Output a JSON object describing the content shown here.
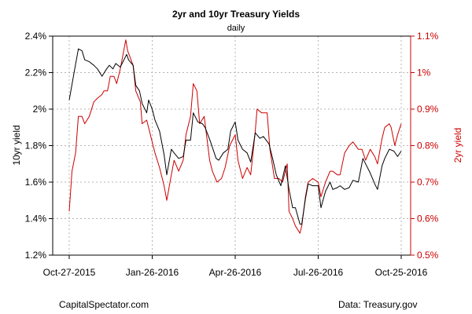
{
  "chart_data": {
    "type": "line",
    "title": "2yr and 10yr Treasury Yields",
    "subtitle": "daily",
    "xlabel": "",
    "x_ticks": [
      "Oct-27-2015",
      "Jan-26-2016",
      "Apr-26-2016",
      "Jul-26-2016",
      "Oct-25-2016"
    ],
    "left_axis": {
      "label": "10yr yield",
      "ylim": [
        1.2,
        2.4
      ],
      "tick_labels": [
        "1.2%",
        "1.4%",
        "1.6%",
        "1.8%",
        "2%",
        "2.2%",
        "2.4%"
      ],
      "color": "#000000"
    },
    "right_axis": {
      "label": "2yr yield",
      "ylim": [
        0.5,
        1.1
      ],
      "tick_labels": [
        "0.5%",
        "0.6%",
        "0.7%",
        "0.8%",
        "0.9%",
        "1%",
        "1.1%"
      ],
      "color": "#cc0000"
    },
    "grid": true,
    "legend": "none",
    "series": [
      {
        "axis": "left",
        "color": "#000000",
        "points": [
          [
            "2015-10-27",
            2.05
          ],
          [
            "2015-11-02",
            2.22
          ],
          [
            "2015-11-06",
            2.33
          ],
          [
            "2015-11-10",
            2.32
          ],
          [
            "2015-11-13",
            2.27
          ],
          [
            "2015-11-18",
            2.26
          ],
          [
            "2015-11-23",
            2.24
          ],
          [
            "2015-11-27",
            2.22
          ],
          [
            "2015-12-02",
            2.18
          ],
          [
            "2015-12-07",
            2.22
          ],
          [
            "2015-12-10",
            2.24
          ],
          [
            "2015-12-14",
            2.22
          ],
          [
            "2015-12-17",
            2.25
          ],
          [
            "2015-12-22",
            2.23
          ],
          [
            "2015-12-29",
            2.3
          ],
          [
            "2015-12-31",
            2.27
          ],
          [
            "2016-01-05",
            2.24
          ],
          [
            "2016-01-08",
            2.13
          ],
          [
            "2016-01-12",
            2.1
          ],
          [
            "2016-01-15",
            2.03
          ],
          [
            "2016-01-20",
            1.98
          ],
          [
            "2016-01-22",
            2.05
          ],
          [
            "2016-01-26",
            2.0
          ],
          [
            "2016-01-29",
            1.94
          ],
          [
            "2016-02-03",
            1.88
          ],
          [
            "2016-02-08",
            1.75
          ],
          [
            "2016-02-11",
            1.64
          ],
          [
            "2016-02-16",
            1.78
          ],
          [
            "2016-02-19",
            1.76
          ],
          [
            "2016-02-24",
            1.73
          ],
          [
            "2016-02-29",
            1.74
          ],
          [
            "2016-03-03",
            1.83
          ],
          [
            "2016-03-08",
            1.83
          ],
          [
            "2016-03-11",
            1.98
          ],
          [
            "2016-03-16",
            1.93
          ],
          [
            "2016-03-21",
            1.92
          ],
          [
            "2016-03-24",
            1.9
          ],
          [
            "2016-03-30",
            1.82
          ],
          [
            "2016-04-05",
            1.73
          ],
          [
            "2016-04-08",
            1.72
          ],
          [
            "2016-04-13",
            1.76
          ],
          [
            "2016-04-18",
            1.78
          ],
          [
            "2016-04-21",
            1.88
          ],
          [
            "2016-04-26",
            1.93
          ],
          [
            "2016-04-29",
            1.83
          ],
          [
            "2016-05-04",
            1.78
          ],
          [
            "2016-05-09",
            1.76
          ],
          [
            "2016-05-13",
            1.71
          ],
          [
            "2016-05-18",
            1.87
          ],
          [
            "2016-05-23",
            1.84
          ],
          [
            "2016-05-27",
            1.85
          ],
          [
            "2016-06-02",
            1.81
          ],
          [
            "2016-06-06",
            1.73
          ],
          [
            "2016-06-10",
            1.64
          ],
          [
            "2016-06-15",
            1.58
          ],
          [
            "2016-06-20",
            1.69
          ],
          [
            "2016-06-24",
            1.56
          ],
          [
            "2016-06-28",
            1.46
          ],
          [
            "2016-07-01",
            1.46
          ],
          [
            "2016-07-06",
            1.37
          ],
          [
            "2016-07-08",
            1.37
          ],
          [
            "2016-07-12",
            1.51
          ],
          [
            "2016-07-15",
            1.59
          ],
          [
            "2016-07-20",
            1.58
          ],
          [
            "2016-07-26",
            1.58
          ],
          [
            "2016-07-29",
            1.46
          ],
          [
            "2016-08-03",
            1.55
          ],
          [
            "2016-08-08",
            1.6
          ],
          [
            "2016-08-11",
            1.56
          ],
          [
            "2016-08-16",
            1.57
          ],
          [
            "2016-08-19",
            1.58
          ],
          [
            "2016-08-24",
            1.56
          ],
          [
            "2016-08-29",
            1.57
          ],
          [
            "2016-09-02",
            1.61
          ],
          [
            "2016-09-08",
            1.6
          ],
          [
            "2016-09-13",
            1.73
          ],
          [
            "2016-09-16",
            1.7
          ],
          [
            "2016-09-21",
            1.65
          ],
          [
            "2016-09-26",
            1.59
          ],
          [
            "2016-09-29",
            1.56
          ],
          [
            "2016-10-04",
            1.69
          ],
          [
            "2016-10-07",
            1.73
          ],
          [
            "2016-10-12",
            1.78
          ],
          [
            "2016-10-17",
            1.77
          ],
          [
            "2016-10-21",
            1.74
          ],
          [
            "2016-10-25",
            1.77
          ]
        ]
      },
      {
        "axis": "right",
        "color": "#cc0000",
        "points": [
          [
            "2015-10-27",
            0.62
          ],
          [
            "2015-10-30",
            0.73
          ],
          [
            "2015-11-03",
            0.78
          ],
          [
            "2015-11-06",
            0.88
          ],
          [
            "2015-11-10",
            0.88
          ],
          [
            "2015-11-13",
            0.86
          ],
          [
            "2015-11-18",
            0.88
          ],
          [
            "2015-11-23",
            0.92
          ],
          [
            "2015-11-27",
            0.93
          ],
          [
            "2015-12-02",
            0.94
          ],
          [
            "2015-12-04",
            0.95
          ],
          [
            "2015-12-08",
            0.95
          ],
          [
            "2015-12-11",
            0.99
          ],
          [
            "2015-12-15",
            0.99
          ],
          [
            "2015-12-18",
            0.97
          ],
          [
            "2015-12-22",
            1.01
          ],
          [
            "2015-12-28",
            1.09
          ],
          [
            "2015-12-30",
            1.06
          ],
          [
            "2016-01-05",
            1.02
          ],
          [
            "2016-01-08",
            0.95
          ],
          [
            "2016-01-13",
            0.92
          ],
          [
            "2016-01-15",
            0.86
          ],
          [
            "2016-01-20",
            0.87
          ],
          [
            "2016-01-25",
            0.82
          ],
          [
            "2016-01-29",
            0.78
          ],
          [
            "2016-02-03",
            0.74
          ],
          [
            "2016-02-08",
            0.69
          ],
          [
            "2016-02-11",
            0.65
          ],
          [
            "2016-02-16",
            0.72
          ],
          [
            "2016-02-19",
            0.76
          ],
          [
            "2016-02-24",
            0.73
          ],
          [
            "2016-02-29",
            0.76
          ],
          [
            "2016-03-03",
            0.83
          ],
          [
            "2016-03-08",
            0.88
          ],
          [
            "2016-03-11",
            0.97
          ],
          [
            "2016-03-15",
            0.95
          ],
          [
            "2016-03-18",
            0.86
          ],
          [
            "2016-03-23",
            0.88
          ],
          [
            "2016-03-29",
            0.76
          ],
          [
            "2016-04-01",
            0.73
          ],
          [
            "2016-04-06",
            0.7
          ],
          [
            "2016-04-11",
            0.71
          ],
          [
            "2016-04-15",
            0.74
          ],
          [
            "2016-04-20",
            0.8
          ],
          [
            "2016-04-26",
            0.83
          ],
          [
            "2016-04-29",
            0.76
          ],
          [
            "2016-05-04",
            0.71
          ],
          [
            "2016-05-09",
            0.74
          ],
          [
            "2016-05-13",
            0.72
          ],
          [
            "2016-05-18",
            0.84
          ],
          [
            "2016-05-20",
            0.9
          ],
          [
            "2016-05-25",
            0.89
          ],
          [
            "2016-05-31",
            0.89
          ],
          [
            "2016-06-03",
            0.79
          ],
          [
            "2016-06-08",
            0.71
          ],
          [
            "2016-06-13",
            0.71
          ],
          [
            "2016-06-17",
            0.7
          ],
          [
            "2016-06-22",
            0.75
          ],
          [
            "2016-06-24",
            0.62
          ],
          [
            "2016-06-28",
            0.6
          ],
          [
            "2016-07-01",
            0.58
          ],
          [
            "2016-07-06",
            0.56
          ],
          [
            "2016-07-08",
            0.58
          ],
          [
            "2016-07-12",
            0.66
          ],
          [
            "2016-07-15",
            0.7
          ],
          [
            "2016-07-20",
            0.71
          ],
          [
            "2016-07-26",
            0.7
          ],
          [
            "2016-07-29",
            0.66
          ],
          [
            "2016-08-03",
            0.7
          ],
          [
            "2016-08-08",
            0.73
          ],
          [
            "2016-08-11",
            0.73
          ],
          [
            "2016-08-16",
            0.72
          ],
          [
            "2016-08-19",
            0.72
          ],
          [
            "2016-08-24",
            0.78
          ],
          [
            "2016-08-29",
            0.8
          ],
          [
            "2016-09-02",
            0.81
          ],
          [
            "2016-09-08",
            0.79
          ],
          [
            "2016-09-12",
            0.79
          ],
          [
            "2016-09-16",
            0.76
          ],
          [
            "2016-09-21",
            0.79
          ],
          [
            "2016-09-26",
            0.77
          ],
          [
            "2016-09-29",
            0.75
          ],
          [
            "2016-10-04",
            0.82
          ],
          [
            "2016-10-07",
            0.85
          ],
          [
            "2016-10-12",
            0.86
          ],
          [
            "2016-10-14",
            0.85
          ],
          [
            "2016-10-18",
            0.8
          ],
          [
            "2016-10-21",
            0.83
          ],
          [
            "2016-10-25",
            0.86
          ]
        ]
      }
    ]
  },
  "footer": {
    "source_left": "CapitalSpectator.com",
    "source_right": "Data: Treasury.gov"
  }
}
